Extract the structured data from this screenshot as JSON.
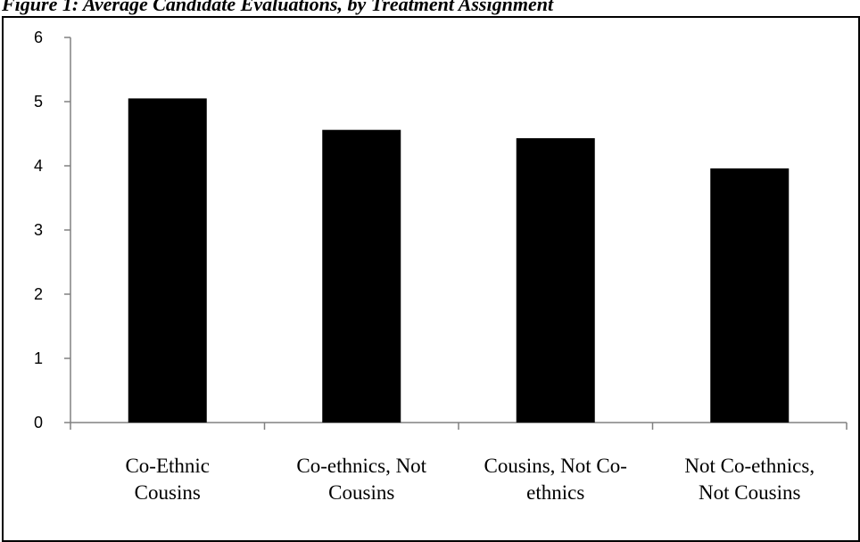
{
  "figure": {
    "title": "Figure 1: Average Candidate Evaluations, by Treatment Assignment"
  },
  "chart_data": {
    "type": "bar",
    "categories": [
      [
        "Co-Ethnic",
        "Cousins"
      ],
      [
        "Co-ethnics, Not",
        "Cousins"
      ],
      [
        "Cousins, Not Co-",
        "ethnics"
      ],
      [
        "Not Co-ethnics,",
        "Not Cousins"
      ]
    ],
    "values": [
      5.05,
      4.56,
      4.43,
      3.96
    ],
    "yticks": [
      "0",
      "1",
      "2",
      "3",
      "4",
      "5",
      "6"
    ],
    "ylim": [
      0,
      6
    ],
    "bar_color": "#000000",
    "grid": false,
    "legend": "none"
  }
}
